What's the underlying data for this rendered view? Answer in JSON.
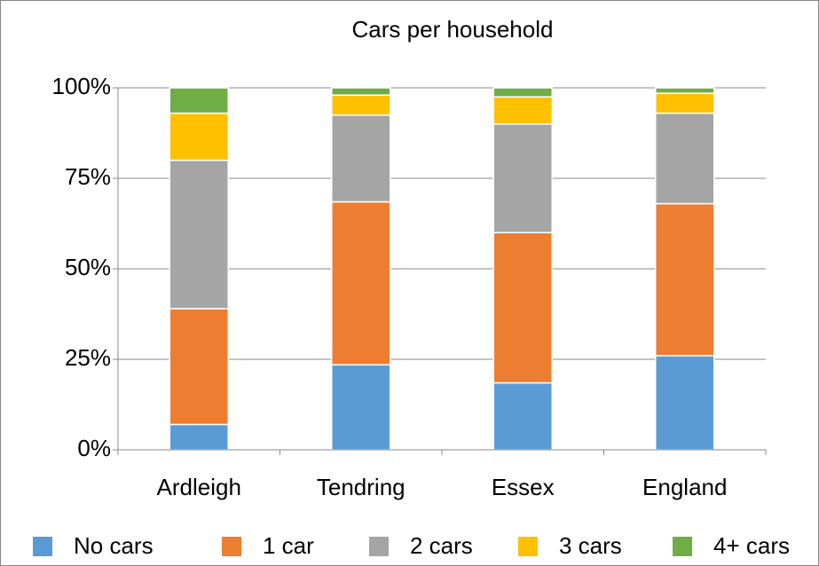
{
  "chart_data": {
    "type": "stacked_bar",
    "title": "Cars per household",
    "categories": [
      "Ardleigh",
      "Tendring",
      "Essex",
      "England"
    ],
    "series": [
      {
        "name": "No cars",
        "color": "#5b9bd5",
        "values": [
          7,
          23.5,
          18.5,
          26
        ]
      },
      {
        "name": "1 car",
        "color": "#ed7d31",
        "values": [
          32,
          45,
          41.5,
          42
        ]
      },
      {
        "name": "2 cars",
        "color": "#a5a5a5",
        "values": [
          41,
          24,
          30,
          25
        ]
      },
      {
        "name": "3 cars",
        "color": "#ffc000",
        "values": [
          13,
          5.5,
          7.5,
          5.5
        ]
      },
      {
        "name": "4+ cars",
        "color": "#70ad47",
        "values": [
          7,
          2,
          2.5,
          1.5
        ]
      }
    ],
    "ylim": [
      0,
      100
    ],
    "yticks": [
      {
        "value": 0,
        "label": "0%"
      },
      {
        "value": 25,
        "label": "25%"
      },
      {
        "value": 50,
        "label": "50%"
      },
      {
        "value": 75,
        "label": "75%"
      },
      {
        "value": 100,
        "label": "100%"
      }
    ],
    "grid": true,
    "legend": "bottom"
  }
}
